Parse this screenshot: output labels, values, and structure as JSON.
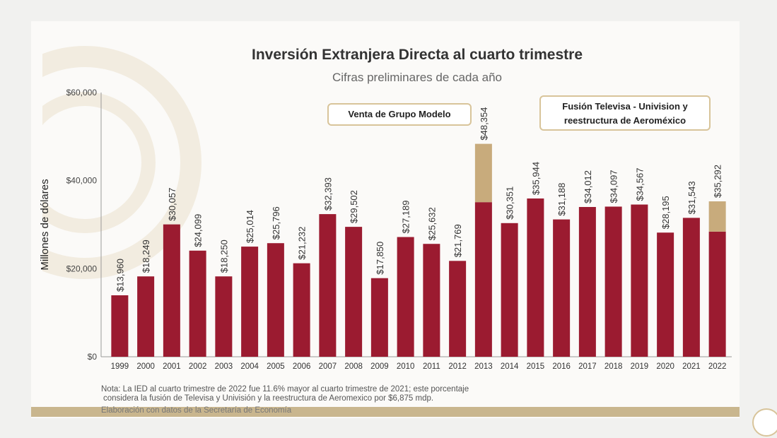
{
  "chart_data": {
    "type": "bar",
    "stacked": true,
    "title": "Inversión Extranjera Directa al cuarto trimestre",
    "subtitle": "Cifras preliminares de cada año",
    "ylabel": "Millones de dólares",
    "ylim": [
      0,
      60000
    ],
    "yticks": [
      "$0",
      "$20,000",
      "$40,000",
      "$60,000"
    ],
    "ytick_values": [
      0,
      20000,
      40000,
      60000
    ],
    "grid": false,
    "categories": [
      "1999",
      "2000",
      "2001",
      "2002",
      "2003",
      "2004",
      "2005",
      "2006",
      "2007",
      "2008",
      "2009",
      "2010",
      "2011",
      "2012",
      "2013",
      "2014",
      "2015",
      "2016",
      "2017",
      "2018",
      "2019",
      "2020",
      "2021",
      "2022"
    ],
    "totals": [
      13960,
      18249,
      30057,
      24099,
      18250,
      25014,
      25796,
      21232,
      32393,
      29502,
      17850,
      27189,
      25632,
      21769,
      48354,
      30351,
      35944,
      31188,
      34012,
      34097,
      34567,
      28195,
      31543,
      35292
    ],
    "data_labels": [
      "$13,960",
      "$18,249",
      "$30,057",
      "$24,099",
      "$18,250",
      "$25,014",
      "$25,796",
      "$21,232",
      "$32,393",
      "$29,502",
      "$17,850",
      "$27,189",
      "$25,632",
      "$21,769",
      "$48,354",
      "$30,351",
      "$35,944",
      "$31,188",
      "$34,012",
      "$34,097",
      "$34,567",
      "$28,195",
      "$31,543",
      "$35,292"
    ],
    "series": [
      {
        "values": [
          13960,
          18249,
          30057,
          24099,
          18250,
          25014,
          25796,
          21232,
          32393,
          29502,
          17850,
          27189,
          25632,
          21769,
          35105,
          30351,
          35944,
          31188,
          34012,
          34097,
          34567,
          28195,
          31543,
          28417
        ],
        "color": "#9b1b30"
      },
      {
        "values": [
          0,
          0,
          0,
          0,
          0,
          0,
          0,
          0,
          0,
          0,
          0,
          0,
          0,
          0,
          13249,
          0,
          0,
          0,
          0,
          0,
          0,
          0,
          0,
          6875
        ],
        "color": "#c8ab7c"
      }
    ],
    "annotations": [
      {
        "text": "Venta de Grupo Modelo",
        "category": "2013"
      },
      {
        "text": "Fusión Televisa - Univision y reestructura de Aeroméxico",
        "category": "2022"
      }
    ]
  },
  "note": "Nota: La IED al cuarto trimestre de 2022 fue 11.6% mayor al cuarto trimestre de 2021; este porcentaje",
  "note2": "considera la fusión de Televisa y Univisión y la reestructura de Aeromexico por $6,875 mdp.",
  "source": "Elaboración con datos de la Secretaría de Economía"
}
